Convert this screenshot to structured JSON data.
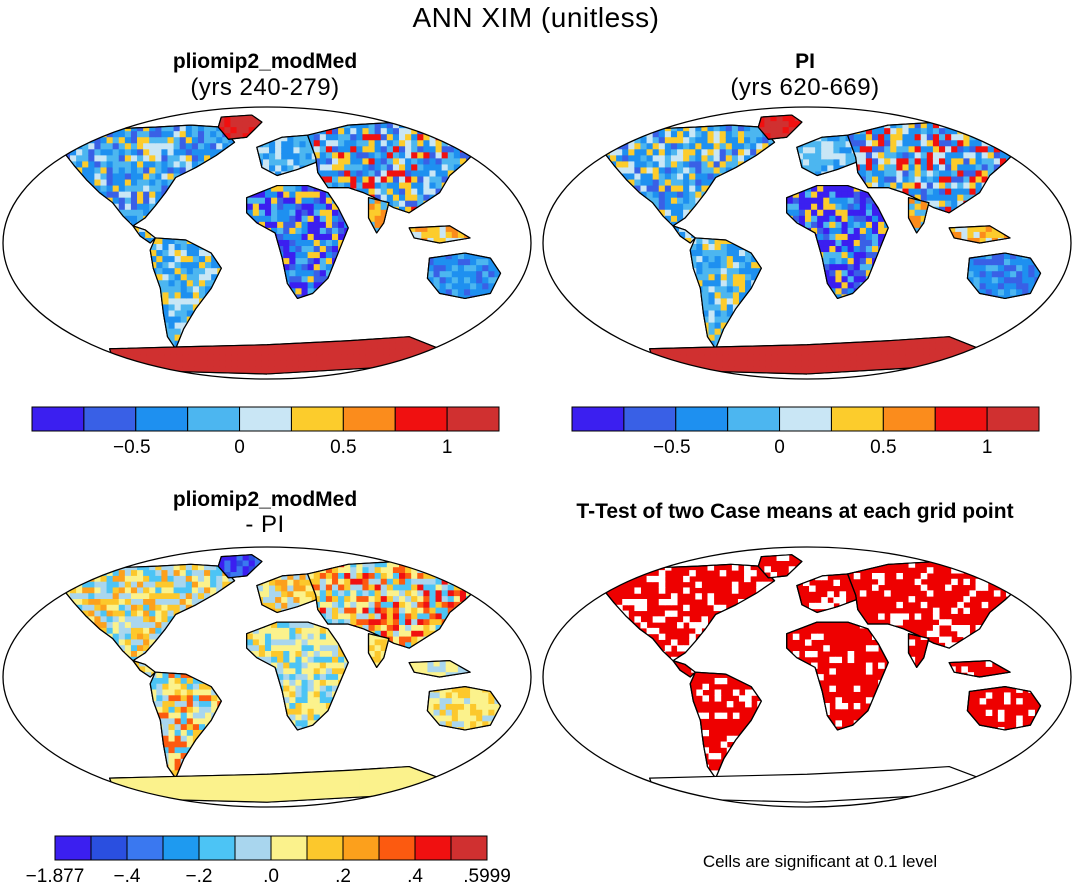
{
  "title": "ANN XIM (unitless)",
  "chart_data": [
    {
      "type": "heatmap",
      "title": "pliomip2_modMed",
      "subtitle": "(yrs 240-279)",
      "variable": "ANN XIM",
      "units": "unitless",
      "colorbar": {
        "tick_labels": [
          "-0.5",
          "0",
          "0.5",
          "1"
        ],
        "tick_values": [
          -0.5,
          0,
          0.5,
          1
        ],
        "range": [
          -1.0,
          1.25
        ],
        "colors": [
          "#3b1ff0",
          "#3960e6",
          "#1e90f0",
          "#4cb6f0",
          "#c9e6f5",
          "#fccc2c",
          "#fb8c1c",
          "#f01010",
          "#d03030"
        ]
      }
    },
    {
      "type": "heatmap",
      "title": "PI",
      "subtitle": "(yrs 620-669)",
      "variable": "ANN XIM",
      "units": "unitless",
      "colorbar": {
        "tick_labels": [
          "-0.5",
          "0",
          "0.5",
          "1"
        ],
        "tick_values": [
          -0.5,
          0,
          0.5,
          1
        ],
        "range": [
          -1.0,
          1.25
        ],
        "colors": [
          "#3b1ff0",
          "#3960e6",
          "#1e90f0",
          "#4cb6f0",
          "#c9e6f5",
          "#fccc2c",
          "#fb8c1c",
          "#f01010",
          "#d03030"
        ]
      }
    },
    {
      "type": "heatmap",
      "title": "pliomip2_modMed",
      "subtitle": "- PI",
      "variable": "ANN XIM difference",
      "units": "unitless",
      "colorbar": {
        "tick_labels": [
          "-1.877",
          "-.4",
          "-.2",
          ".0",
          ".2",
          ".4",
          ".5999"
        ],
        "tick_values": [
          -1.877,
          -0.4,
          -0.2,
          0.0,
          0.2,
          0.4,
          0.5999
        ],
        "colors": [
          "#3b1ff0",
          "#2a4fe0",
          "#3a78f0",
          "#1e9af0",
          "#4cc4f5",
          "#a9d6ee",
          "#fbf28c",
          "#fcc82c",
          "#fca01c",
          "#fc5a10",
          "#f01010",
          "#d03030"
        ]
      }
    },
    {
      "type": "heatmap",
      "title": "T-Test of two Case means at each grid point",
      "significance_level": 0.1,
      "significant_color": "#ee0000",
      "footnote": "Cells are significant at 0.1 level"
    }
  ]
}
